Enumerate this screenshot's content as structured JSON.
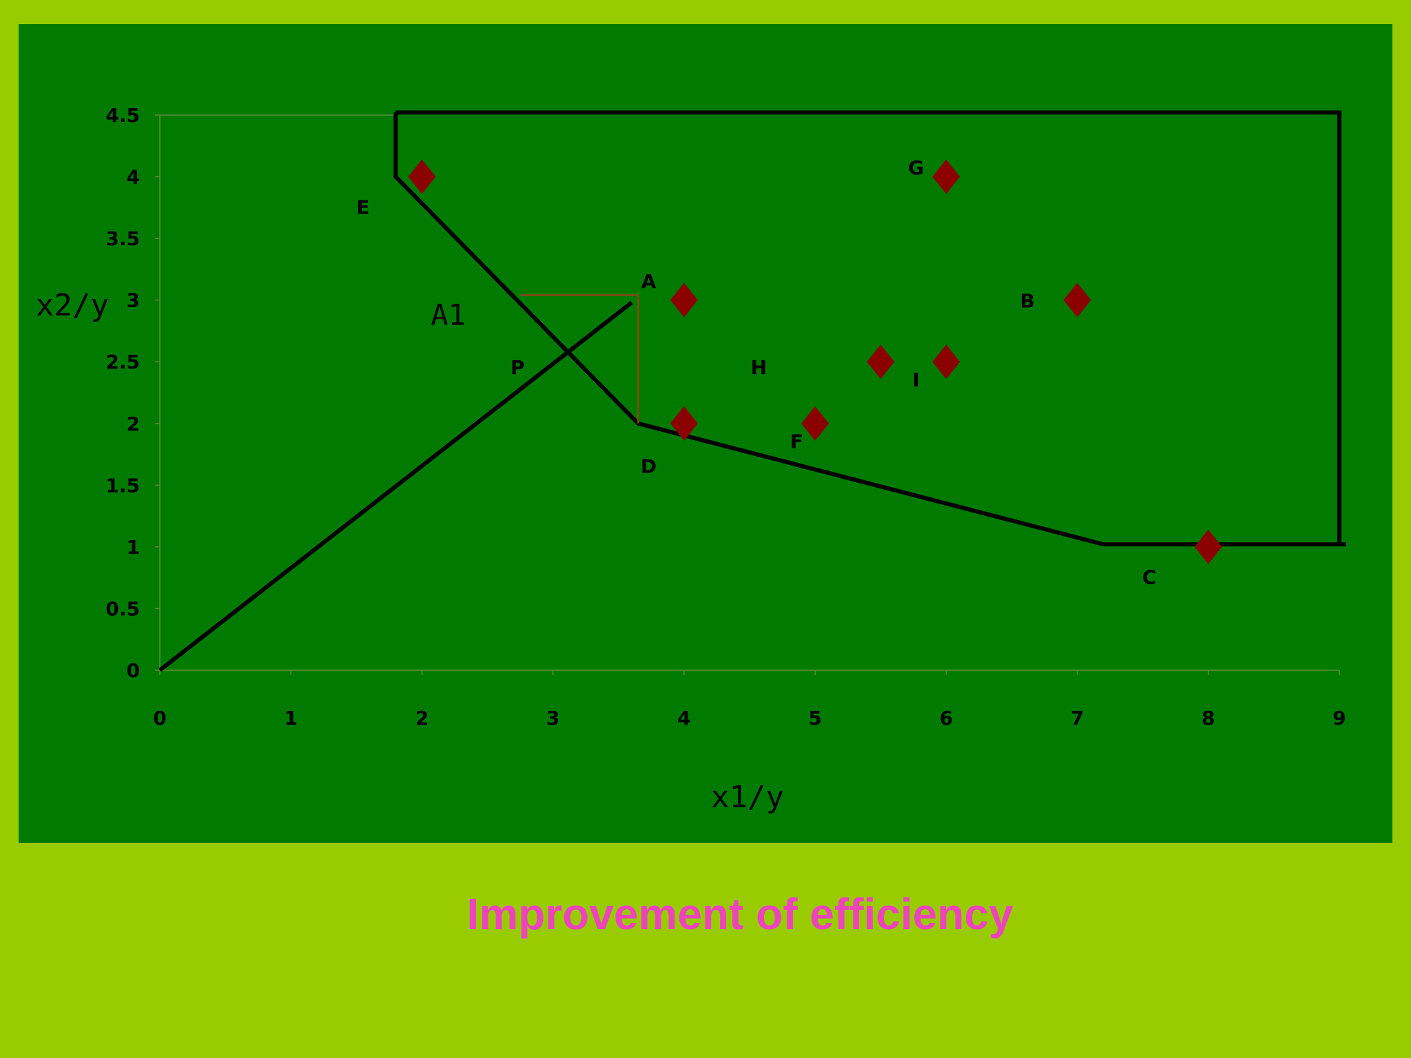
{
  "slide": {
    "caption": "Improvement of efficiency"
  },
  "colors": {
    "background": "#99cc00",
    "plot_bg": "#007a00",
    "marker": "#8b0000",
    "lines": "#000000",
    "projection": "#8b4513",
    "caption": "#ee44bb"
  },
  "chart_data": {
    "type": "scatter",
    "title": "",
    "xlabel": "x1/y",
    "ylabel": "x2/y",
    "xlim": [
      0,
      9
    ],
    "ylim": [
      0,
      4.5
    ],
    "xticks": [
      "0",
      "1",
      "2",
      "3",
      "4",
      "5",
      "6",
      "7",
      "8",
      "9"
    ],
    "yticks": [
      "0",
      "0.5",
      "1",
      "1.5",
      "2",
      "2.5",
      "3",
      "3.5",
      "4",
      "4.5"
    ],
    "xtick_values": [
      0,
      1,
      2,
      3,
      4,
      5,
      6,
      7,
      8,
      9
    ],
    "ytick_values": [
      0,
      0.5,
      1,
      1.5,
      2,
      2.5,
      3,
      3.5,
      4,
      4.5
    ],
    "grid": false,
    "markers": [
      {
        "x": 2,
        "y": 4
      },
      {
        "x": 4,
        "y": 3
      },
      {
        "x": 4,
        "y": 2
      },
      {
        "x": 5,
        "y": 2
      },
      {
        "x": 5.5,
        "y": 2.5
      },
      {
        "x": 6,
        "y": 2.5
      },
      {
        "x": 6,
        "y": 4
      },
      {
        "x": 7,
        "y": 3
      },
      {
        "x": 8,
        "y": 1
      }
    ],
    "frontier": [
      [
        1.8,
        4.52
      ],
      [
        1.8,
        4.0
      ],
      [
        3.65,
        2.0
      ],
      [
        7.2,
        1.02
      ],
      [
        9.05,
        1.02
      ]
    ],
    "enclosure": [
      [
        1.8,
        4.52
      ],
      [
        9.0,
        4.52
      ],
      [
        9.0,
        1.02
      ]
    ],
    "ray": [
      [
        0,
        0
      ],
      [
        3.6,
        2.98
      ]
    ],
    "projection_lines": [
      [
        [
          2.75,
          3.04
        ],
        [
          3.65,
          3.04
        ]
      ],
      [
        [
          3.65,
          3.04
        ],
        [
          3.65,
          2.0
        ]
      ]
    ],
    "point_labels": [
      {
        "text": "E",
        "x": 1.55,
        "y": 3.7
      },
      {
        "text": "A",
        "x": 3.73,
        "y": 3.1
      },
      {
        "text": "P",
        "x": 2.73,
        "y": 2.4
      },
      {
        "text": "H",
        "x": 4.57,
        "y": 2.4
      },
      {
        "text": "I",
        "x": 5.77,
        "y": 2.3
      },
      {
        "text": "G",
        "x": 5.77,
        "y": 4.02
      },
      {
        "text": "B",
        "x": 6.62,
        "y": 2.94
      },
      {
        "text": "F",
        "x": 4.86,
        "y": 1.8
      },
      {
        "text": "D",
        "x": 3.73,
        "y": 1.6
      },
      {
        "text": "C",
        "x": 7.55,
        "y": 0.7
      }
    ],
    "annotation_A1": {
      "text": "A1",
      "x": 2.2,
      "y": 2.8
    }
  }
}
